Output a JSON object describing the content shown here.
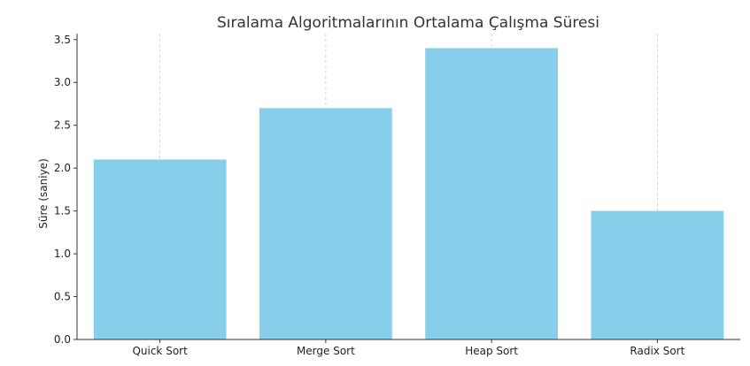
{
  "chart_data": {
    "type": "bar",
    "title": "Sıralama Algoritmalarının Ortalama Çalışma Süresi",
    "xlabel": "",
    "ylabel": "Süre (saniye)",
    "categories": [
      "Quick Sort",
      "Merge Sort",
      "Heap Sort",
      "Radix Sort"
    ],
    "values": [
      2.1,
      2.7,
      3.4,
      1.5
    ],
    "ylim": [
      0,
      3.57
    ],
    "yticks": [
      0.0,
      0.5,
      1.0,
      1.5,
      2.0,
      2.5,
      3.0,
      3.5
    ],
    "bar_color": "#87ceeb",
    "grid": "x-dashed"
  }
}
